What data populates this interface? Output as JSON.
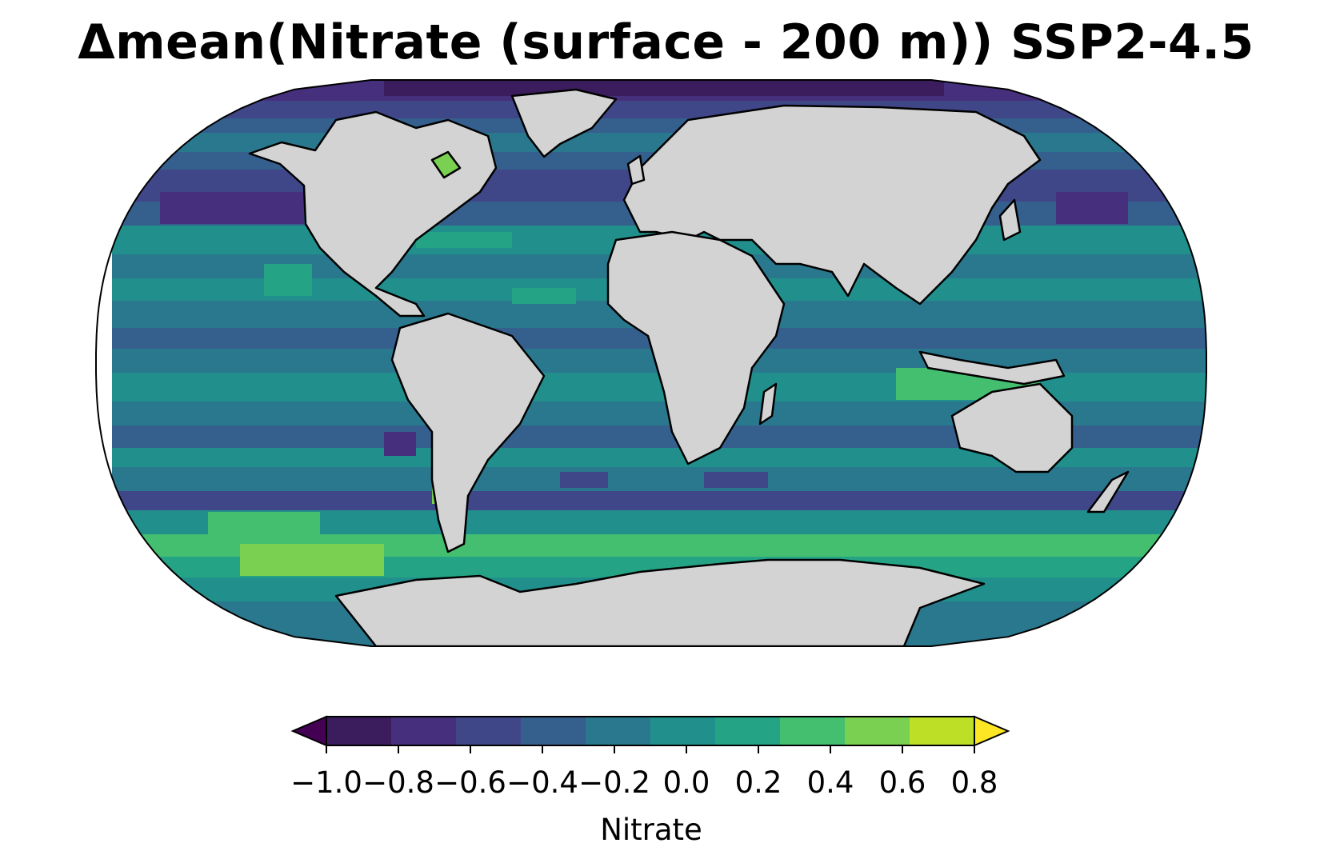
{
  "figure": {
    "title": "Δmean(Nitrate (surface - 200 m)) SSP2-4.5"
  },
  "map": {
    "projection": "Robinson",
    "land_color": "#d3d3d3",
    "coastline_color": "#000000",
    "variable": "Δmean nitrate (surface - 200 m)"
  },
  "colorbar": {
    "label": "Nitrate",
    "colormap": "viridis",
    "extend": "both",
    "levels": [
      -1.0,
      -0.8,
      -0.6,
      -0.4,
      -0.2,
      0.0,
      0.2,
      0.4,
      0.6,
      0.8
    ],
    "tick_labels": [
      "−1.0",
      "−0.8",
      "−0.6",
      "−0.4",
      "−0.2",
      "0.0",
      "0.2",
      "0.4",
      "0.6",
      "0.8"
    ],
    "colors": [
      "#3b1c5d",
      "#462f7c",
      "#3f4788",
      "#355f8d",
      "#2a788e",
      "#21908d",
      "#25a385",
      "#44bf70",
      "#7ad151",
      "#bddf26"
    ],
    "under_color": "#440154",
    "over_color": "#fde725"
  }
}
